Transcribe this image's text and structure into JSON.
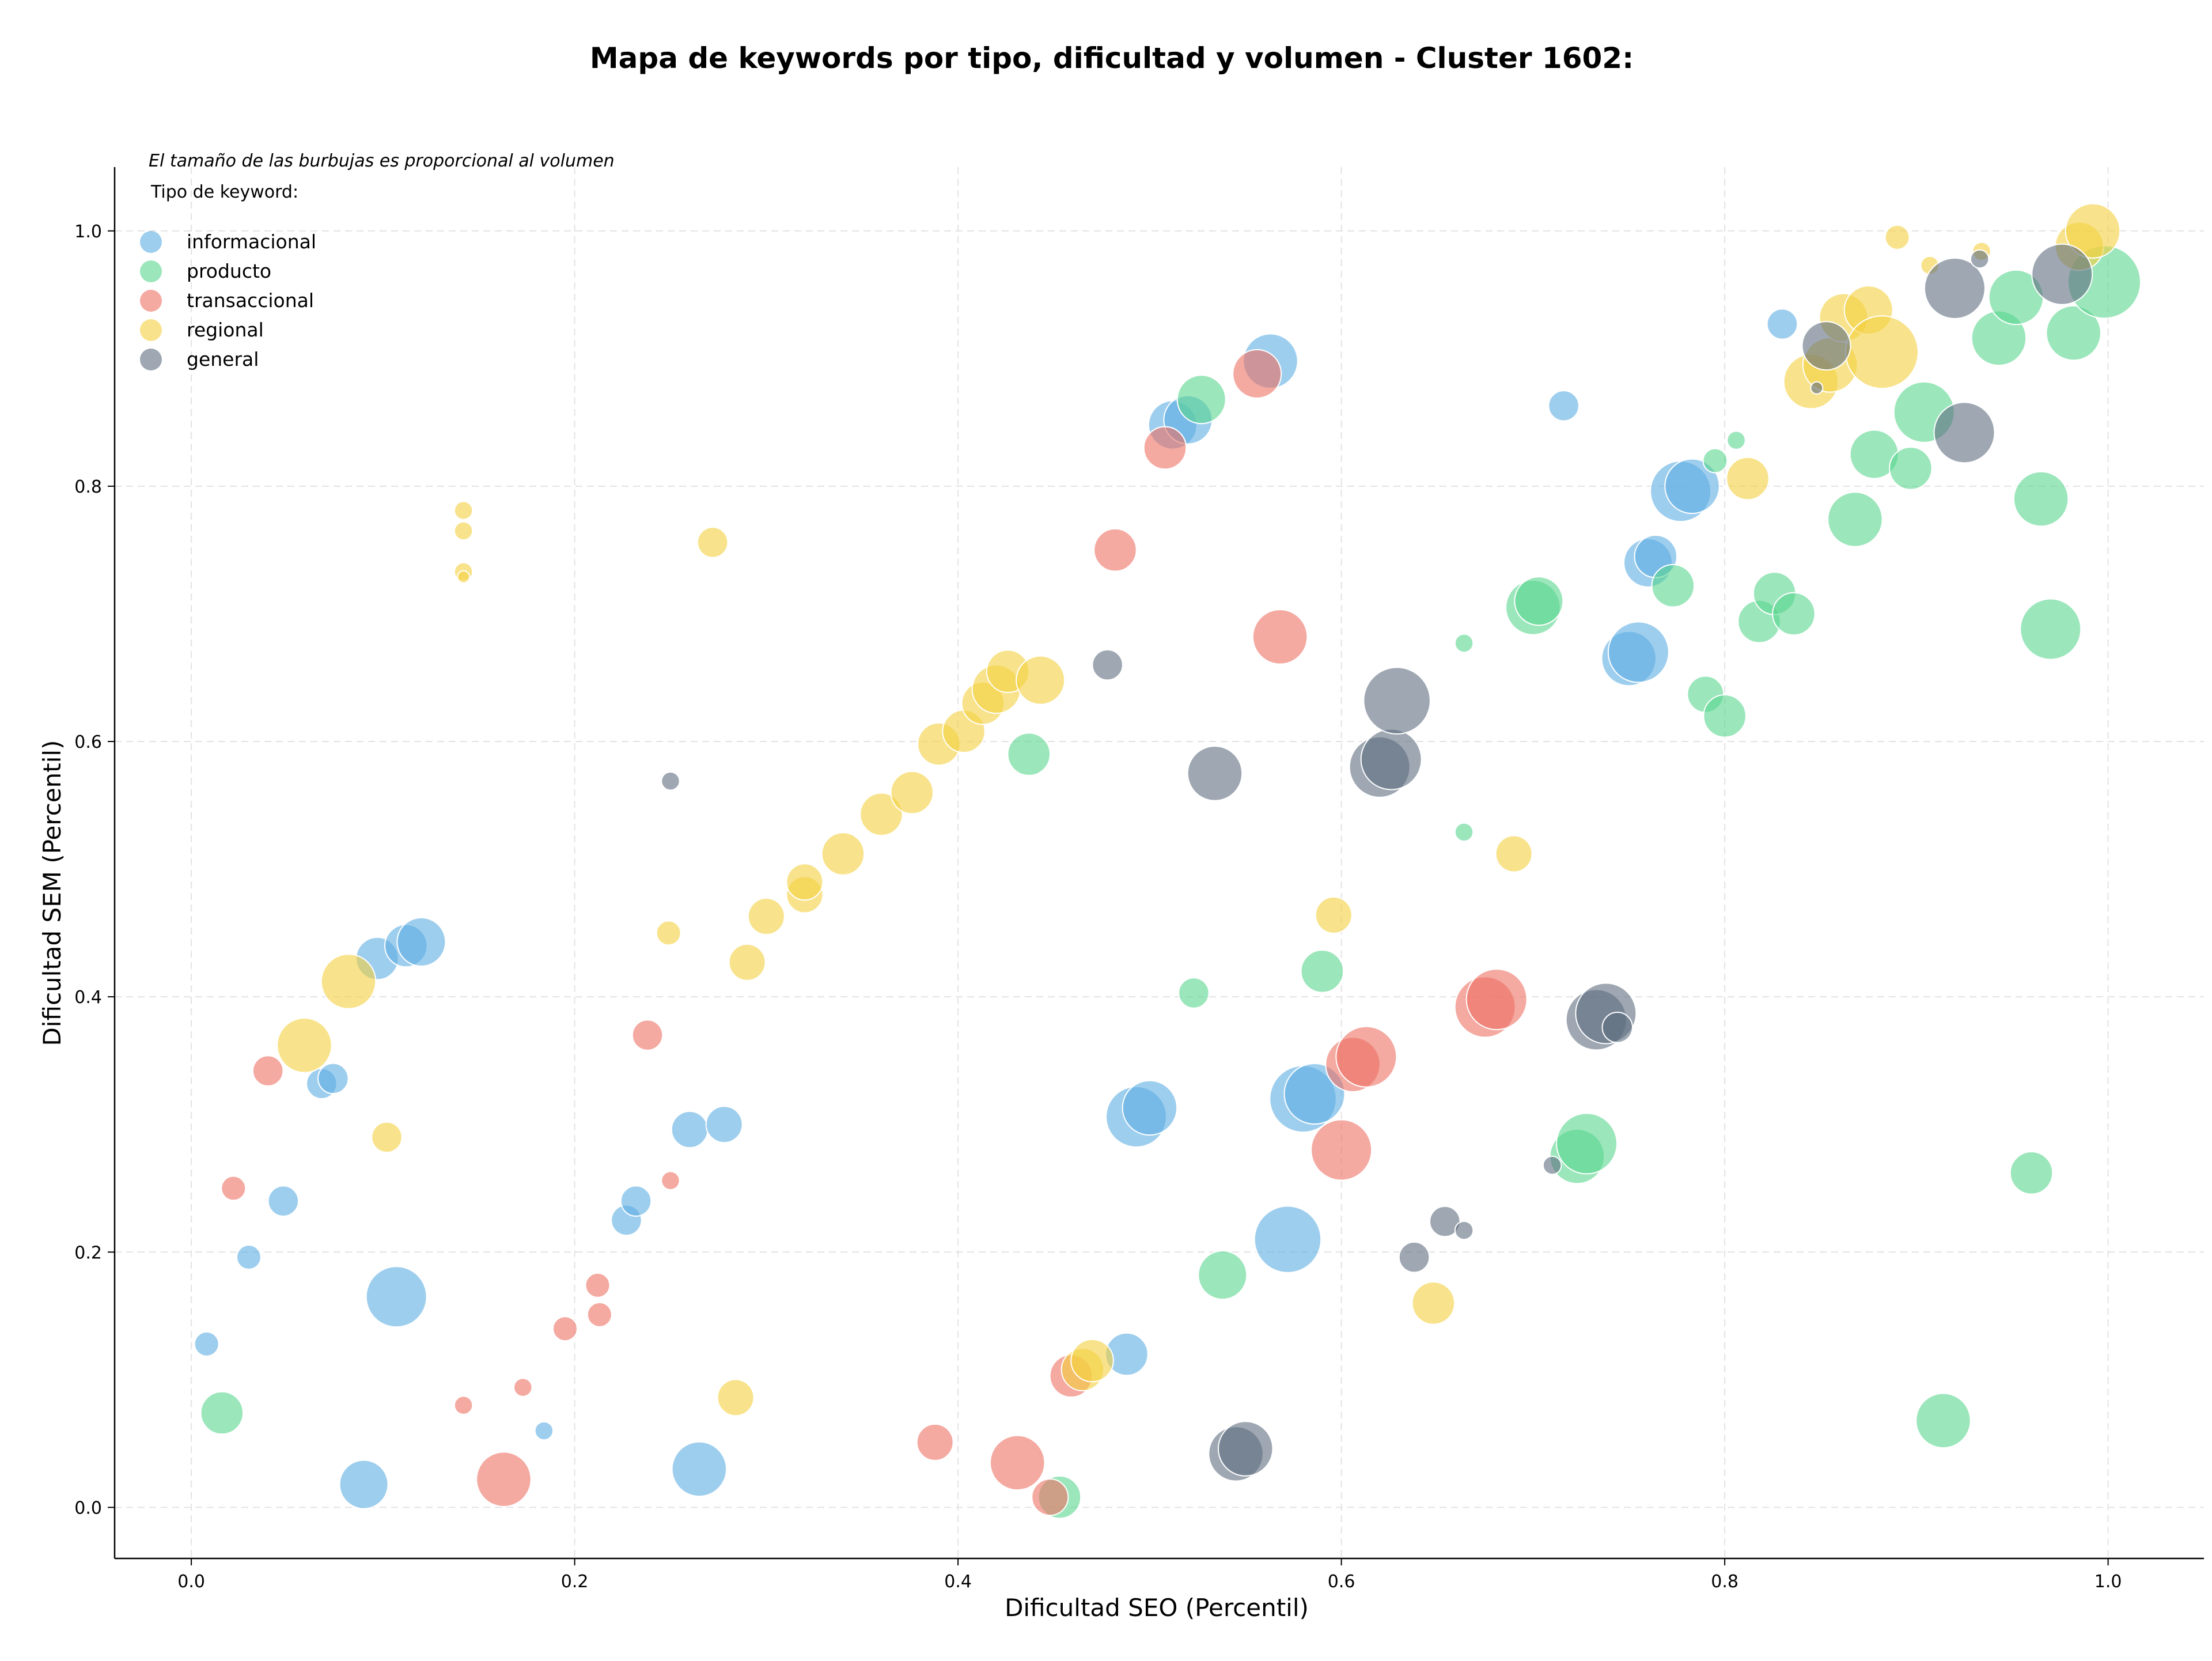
{
  "chart_data": {
    "type": "scatter",
    "title": "Mapa de keywords por tipo, dificultad y volumen - Cluster 1602:",
    "xlabel": "Dificultad SEO (Percentil)",
    "ylabel": "Dificultad SEM (Percentil)",
    "xlim": [
      -0.04,
      1.05
    ],
    "ylim": [
      -0.04,
      1.05
    ],
    "xticks": [
      "0.0",
      "0.2",
      "0.4",
      "0.6",
      "0.8",
      "1.0"
    ],
    "yticks": [
      "0.0",
      "0.2",
      "0.4",
      "0.6",
      "0.8",
      "1.0"
    ],
    "grid": true,
    "bubble_note": "El tamaño de las burbujas es proporcional al volumen",
    "legend_title": "Tipo de keyword:",
    "legend_position": "top-left",
    "series": [
      {
        "name": "informacional",
        "color": "#5DADE2",
        "points": [
          [
            0.008,
            0.128,
            2
          ],
          [
            0.03,
            0.196,
            2
          ],
          [
            0.048,
            0.24,
            2.5
          ],
          [
            0.068,
            0.332,
            2.5
          ],
          [
            0.074,
            0.336,
            2.5
          ],
          [
            0.09,
            0.018,
            4
          ],
          [
            0.097,
            0.43,
            3.5
          ],
          [
            0.107,
            0.165,
            5
          ],
          [
            0.112,
            0.44,
            3.5
          ],
          [
            0.12,
            0.443,
            4
          ],
          [
            0.184,
            0.06,
            1.5
          ],
          [
            0.227,
            0.225,
            2.5
          ],
          [
            0.232,
            0.24,
            2.5
          ],
          [
            0.26,
            0.296,
            3
          ],
          [
            0.265,
            0.03,
            4.5
          ],
          [
            0.278,
            0.3,
            3
          ],
          [
            0.488,
            0.12,
            3.5
          ],
          [
            0.493,
            0.306,
            5
          ],
          [
            0.5,
            0.313,
            4.5
          ],
          [
            0.512,
            0.848,
            4
          ],
          [
            0.52,
            0.852,
            4
          ],
          [
            0.563,
            0.898,
            4.5
          ],
          [
            0.572,
            0.21,
            5.5
          ],
          [
            0.58,
            0.32,
            5.5
          ],
          [
            0.586,
            0.324,
            5
          ],
          [
            0.716,
            0.863,
            2.5
          ],
          [
            0.75,
            0.665,
            4.5
          ],
          [
            0.755,
            0.67,
            5
          ],
          [
            0.76,
            0.74,
            4
          ],
          [
            0.764,
            0.745,
            3.5
          ],
          [
            0.777,
            0.796,
            5
          ],
          [
            0.783,
            0.8,
            4.5
          ],
          [
            0.83,
            0.927,
            2.5
          ]
        ]
      },
      {
        "name": "producto",
        "color": "#58D68D",
        "points": [
          [
            0.016,
            0.074,
            3.5
          ],
          [
            0.437,
            0.59,
            3.5
          ],
          [
            0.453,
            0.008,
            3.5
          ],
          [
            0.523,
            0.403,
            2.5
          ],
          [
            0.527,
            0.868,
            4
          ],
          [
            0.538,
            0.182,
            4
          ],
          [
            0.59,
            0.42,
            3.5
          ],
          [
            0.664,
            0.677,
            1.5
          ],
          [
            0.664,
            0.529,
            1.5
          ],
          [
            0.7,
            0.705,
            4.5
          ],
          [
            0.703,
            0.71,
            4
          ],
          [
            0.723,
            0.275,
            4.5
          ],
          [
            0.728,
            0.285,
            5
          ],
          [
            0.773,
            0.722,
            3.5
          ],
          [
            0.79,
            0.637,
            3
          ],
          [
            0.795,
            0.82,
            2
          ],
          [
            0.8,
            0.62,
            3.5
          ],
          [
            0.806,
            0.836,
            1.5
          ],
          [
            0.818,
            0.694,
            3.5
          ],
          [
            0.826,
            0.716,
            3.5
          ],
          [
            0.836,
            0.7,
            3.5
          ],
          [
            0.868,
            0.774,
            4.5
          ],
          [
            0.878,
            0.825,
            4
          ],
          [
            0.897,
            0.814,
            3.5
          ],
          [
            0.904,
            0.858,
            5
          ],
          [
            0.914,
            0.068,
            4.5
          ],
          [
            0.943,
            0.916,
            4.5
          ],
          [
            0.952,
            0.948,
            4.5
          ],
          [
            0.96,
            0.262,
            3.5
          ],
          [
            0.965,
            0.79,
            4.5
          ],
          [
            0.97,
            0.688,
            5
          ],
          [
            0.982,
            0.92,
            4.5
          ],
          [
            0.998,
            0.96,
            6
          ]
        ]
      },
      {
        "name": "transaccional",
        "color": "#EC7063",
        "points": [
          [
            0.022,
            0.25,
            2
          ],
          [
            0.04,
            0.342,
            2.5
          ],
          [
            0.142,
            0.08,
            1.5
          ],
          [
            0.163,
            0.022,
            4.5
          ],
          [
            0.173,
            0.094,
            1.5
          ],
          [
            0.195,
            0.14,
            2
          ],
          [
            0.212,
            0.174,
            2
          ],
          [
            0.213,
            0.151,
            2
          ],
          [
            0.238,
            0.37,
            2.5
          ],
          [
            0.25,
            0.256,
            1.5
          ],
          [
            0.388,
            0.051,
            3
          ],
          [
            0.431,
            0.035,
            4.5
          ],
          [
            0.448,
            0.008,
            3
          ],
          [
            0.459,
            0.103,
            3.5
          ],
          [
            0.482,
            0.75,
            3.5
          ],
          [
            0.508,
            0.83,
            3.5
          ],
          [
            0.556,
            0.888,
            4
          ],
          [
            0.568,
            0.682,
            4.5
          ],
          [
            0.6,
            0.28,
            5
          ],
          [
            0.606,
            0.347,
            4.5
          ],
          [
            0.613,
            0.353,
            5
          ],
          [
            0.675,
            0.392,
            5
          ],
          [
            0.681,
            0.398,
            5
          ]
        ]
      },
      {
        "name": "regional",
        "color": "#F4D03F",
        "points": [
          [
            0.059,
            0.362,
            4.5
          ],
          [
            0.082,
            0.412,
            4.5
          ],
          [
            0.102,
            0.29,
            2.5
          ],
          [
            0.142,
            0.781,
            1.5
          ],
          [
            0.142,
            0.765,
            1.5
          ],
          [
            0.142,
            0.733,
            1.5
          ],
          [
            0.142,
            0.729,
            1
          ],
          [
            0.249,
            0.45,
            2
          ],
          [
            0.272,
            0.756,
            2.5
          ],
          [
            0.284,
            0.086,
            3
          ],
          [
            0.29,
            0.427,
            3
          ],
          [
            0.3,
            0.463,
            3
          ],
          [
            0.32,
            0.48,
            3
          ],
          [
            0.32,
            0.49,
            3
          ],
          [
            0.34,
            0.512,
            3.5
          ],
          [
            0.36,
            0.543,
            3.5
          ],
          [
            0.376,
            0.56,
            3.5
          ],
          [
            0.39,
            0.598,
            3.5
          ],
          [
            0.403,
            0.608,
            3.5
          ],
          [
            0.413,
            0.63,
            3.5
          ],
          [
            0.42,
            0.641,
            4
          ],
          [
            0.426,
            0.655,
            3.5
          ],
          [
            0.443,
            0.648,
            4
          ],
          [
            0.465,
            0.108,
            3.5
          ],
          [
            0.47,
            0.115,
            3.5
          ],
          [
            0.596,
            0.464,
            3
          ],
          [
            0.648,
            0.16,
            3.5
          ],
          [
            0.69,
            0.512,
            3
          ],
          [
            0.812,
            0.806,
            3.5
          ],
          [
            0.845,
            0.882,
            4.5
          ],
          [
            0.855,
            0.895,
            4.5
          ],
          [
            0.862,
            0.932,
            4
          ],
          [
            0.875,
            0.938,
            4
          ],
          [
            0.882,
            0.905,
            6
          ],
          [
            0.89,
            0.995,
            2
          ],
          [
            0.907,
            0.973,
            1.5
          ],
          [
            0.934,
            0.984,
            1.5
          ],
          [
            0.985,
            0.988,
            4
          ],
          [
            0.992,
            1.0,
            4.5
          ]
        ]
      },
      {
        "name": "general",
        "color": "#5D6D7E",
        "points": [
          [
            0.25,
            0.569,
            1.5
          ],
          [
            0.478,
            0.66,
            2.5
          ],
          [
            0.534,
            0.575,
            4.5
          ],
          [
            0.545,
            0.042,
            4.5
          ],
          [
            0.55,
            0.046,
            4.5
          ],
          [
            0.62,
            0.58,
            5
          ],
          [
            0.626,
            0.586,
            5
          ],
          [
            0.629,
            0.632,
            5.5
          ],
          [
            0.638,
            0.196,
            2.5
          ],
          [
            0.654,
            0.224,
            2.5
          ],
          [
            0.664,
            0.217,
            1.5
          ],
          [
            0.71,
            0.268,
            1.5
          ],
          [
            0.733,
            0.382,
            5
          ],
          [
            0.738,
            0.387,
            5
          ],
          [
            0.744,
            0.376,
            2.5
          ],
          [
            0.848,
            0.877,
            1
          ],
          [
            0.853,
            0.91,
            4
          ],
          [
            0.92,
            0.955,
            5
          ],
          [
            0.925,
            0.842,
            5
          ],
          [
            0.933,
            0.978,
            1.5
          ],
          [
            0.976,
            0.966,
            5
          ]
        ]
      }
    ]
  }
}
